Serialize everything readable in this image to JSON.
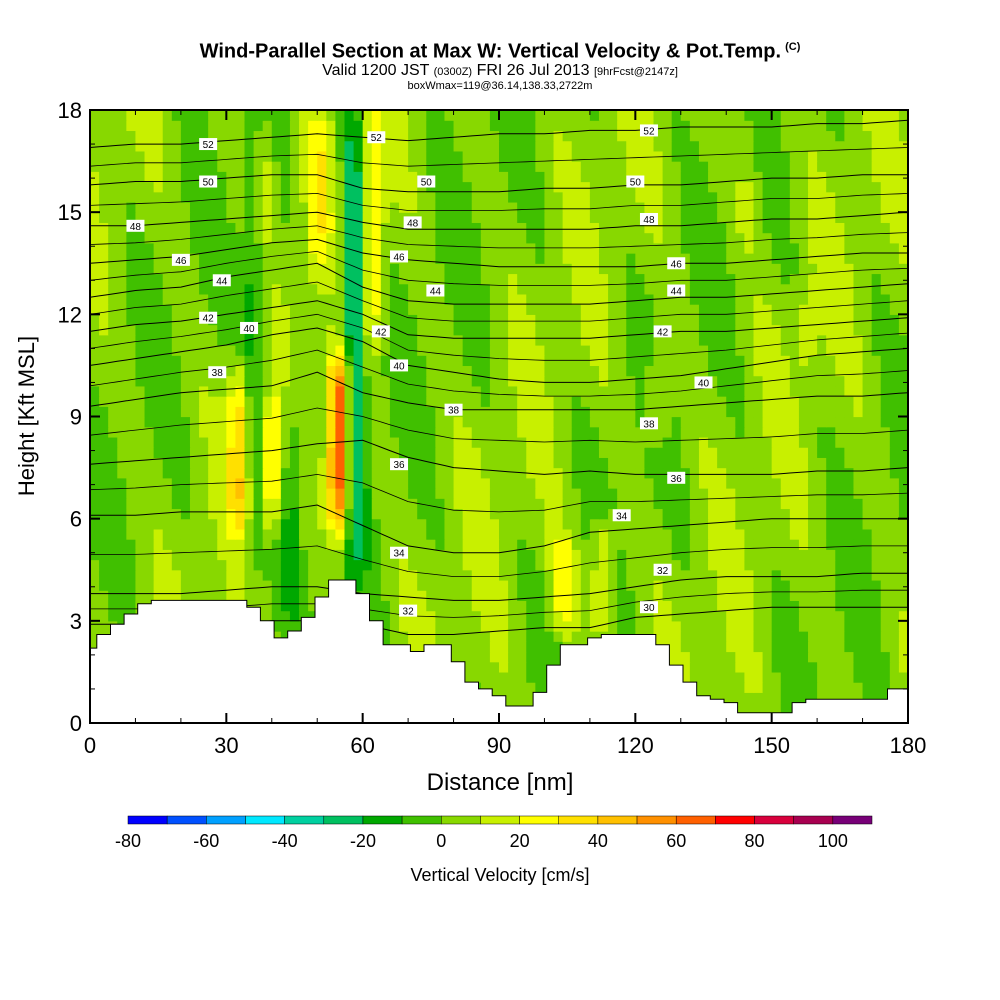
{
  "title": {
    "main": "Wind-Parallel Section at Max W: Vertical Velocity & Pot.Temp.",
    "copyright": "(C)",
    "valid_prefix": "Valid 1200 JST",
    "valid_utc": "(0300Z)",
    "valid_date": "FRI 26 Jul 2013",
    "forecast": "[9hrFcst@2147z]",
    "box_info": "boxWmax=119@36.14,138.33,2722m"
  },
  "chart_data": {
    "type": "heatmap",
    "xlabel": "Distance [nm]",
    "ylabel": "Height [Kft MSL]",
    "xlim": [
      0,
      180
    ],
    "ylim": [
      0,
      18
    ],
    "xticks": [
      "0",
      "30",
      "60",
      "90",
      "120",
      "150",
      "180"
    ],
    "yticks": [
      "0",
      "3",
      "6",
      "9",
      "12",
      "15",
      "18"
    ],
    "colorbar": {
      "label": "Vertical Velocity [cm/s]",
      "ticks": [
        "-80",
        "-60",
        "-40",
        "-20",
        "0",
        "20",
        "40",
        "60",
        "80",
        "100"
      ],
      "levels": [
        -80,
        -70,
        -60,
        -50,
        -40,
        -30,
        -20,
        -10,
        0,
        10,
        20,
        30,
        40,
        50,
        60,
        70,
        80,
        90,
        100,
        110
      ],
      "colors": [
        "#0000ff",
        "#0050ff",
        "#00a0ff",
        "#00e8ff",
        "#00d0a0",
        "#00c060",
        "#00a800",
        "#40c000",
        "#88d800",
        "#c8f000",
        "#ffff00",
        "#ffe000",
        "#ffc000",
        "#ff9000",
        "#ff6000",
        "#ff0000",
        "#d8003c",
        "#a80050",
        "#780078"
      ]
    },
    "vertical_velocity_features": [
      {
        "x": 33,
        "y_range": [
          5.5,
          10.5
        ],
        "value": 35
      },
      {
        "x": 36,
        "y_range": [
          4,
          18
        ],
        "value": -20
      },
      {
        "x": 40,
        "y_range": [
          5.5,
          9.5
        ],
        "value": 30
      },
      {
        "x": 44,
        "y_range": [
          3.5,
          10
        ],
        "value": -20
      },
      {
        "x": 55,
        "y_range": [
          5.5,
          11
        ],
        "value": 80
      },
      {
        "x": 58,
        "y_range": [
          5,
          18
        ],
        "value": -45
      },
      {
        "x": 62,
        "y_range": [
          11,
          18
        ],
        "value": 30
      },
      {
        "x": 50,
        "y_range": [
          13,
          18
        ],
        "value": 20
      },
      {
        "x": 38,
        "y_range": [
          14,
          18
        ],
        "value": 20
      },
      {
        "x": 104,
        "y_range": [
          2.5,
          5.5
        ],
        "value": 25
      },
      {
        "x": 113,
        "y_range": [
          2.5,
          6
        ],
        "value": 25
      },
      {
        "x": 125,
        "y_range": [
          8,
          11
        ],
        "value": 15
      },
      {
        "x": 145,
        "y_range": [
          14,
          18
        ],
        "value": 10
      },
      {
        "x": 158,
        "y_range": [
          10,
          13
        ],
        "value": 10
      }
    ],
    "theta_contours": [
      {
        "label": "30",
        "heights": [
          2.9,
          2.9,
          2.9,
          2.9,
          3.0,
          3.0,
          2.9,
          2.6,
          2.6,
          2.7,
          2.8,
          2.8,
          3.1,
          3.2,
          3.3,
          3.4,
          3.4,
          3.4,
          3.4
        ]
      },
      {
        "label": "32",
        "heights": [
          3.8,
          3.8,
          3.8,
          3.9,
          4.0,
          4.0,
          3.8,
          3.7,
          3.6,
          3.6,
          3.7,
          3.8,
          4.0,
          4.2,
          4.3,
          4.3,
          4.3,
          4.4,
          4.4
        ]
      },
      {
        "label": "34",
        "heights": [
          6.1,
          6.1,
          6.2,
          6.2,
          6.2,
          6.4,
          5.8,
          5.2,
          5.0,
          5.0,
          5.2,
          5.6,
          5.7,
          5.8,
          5.9,
          6.0,
          6.0,
          6.0,
          6.0
        ]
      },
      {
        "label": "36",
        "heights": [
          7.6,
          7.7,
          7.8,
          7.9,
          8.0,
          8.2,
          8.3,
          7.8,
          7.5,
          7.4,
          7.3,
          7.4,
          7.3,
          7.3,
          7.3,
          7.3,
          7.4,
          7.4,
          7.5
        ]
      },
      {
        "label": "38",
        "heights": [
          9.3,
          9.5,
          9.7,
          9.8,
          9.9,
          10.3,
          9.7,
          9.4,
          9.2,
          9.2,
          9.2,
          9.2,
          9.2,
          9.3,
          9.4,
          9.5,
          9.6,
          9.6,
          9.7
        ]
      },
      {
        "label": "40",
        "heights": [
          10.5,
          10.7,
          10.9,
          11.1,
          11.4,
          11.6,
          11.2,
          10.5,
          10.3,
          10.1,
          10.0,
          10.0,
          10.1,
          10.2,
          10.4,
          10.6,
          10.8,
          10.9,
          11.0
        ]
      },
      {
        "label": "42",
        "heights": [
          11.5,
          11.7,
          11.8,
          12.0,
          12.2,
          12.4,
          12.0,
          11.4,
          11.3,
          11.3,
          11.3,
          11.3,
          11.4,
          11.5,
          11.5,
          11.6,
          11.7,
          11.8,
          11.9
        ]
      },
      {
        "label": "44",
        "heights": [
          12.5,
          12.7,
          12.8,
          13.1,
          13.3,
          13.5,
          12.8,
          12.4,
          12.3,
          12.3,
          12.3,
          12.3,
          12.4,
          12.5,
          12.5,
          12.6,
          12.7,
          12.8,
          12.9
        ]
      },
      {
        "label": "46",
        "heights": [
          13.5,
          13.6,
          13.7,
          13.9,
          14.1,
          14.2,
          13.8,
          13.6,
          13.5,
          13.4,
          13.4,
          13.4,
          13.4,
          13.5,
          13.5,
          13.6,
          13.7,
          13.8,
          13.8
        ]
      },
      {
        "label": "48",
        "heights": [
          14.6,
          14.6,
          14.7,
          14.8,
          14.9,
          15.0,
          14.7,
          14.5,
          14.5,
          14.5,
          14.5,
          14.5,
          14.6,
          14.6,
          14.7,
          14.8,
          14.8,
          14.9,
          15.0
        ]
      },
      {
        "label": "50",
        "heights": [
          15.8,
          15.9,
          15.9,
          16.0,
          16.1,
          16.1,
          15.7,
          15.6,
          15.6,
          15.6,
          15.7,
          15.7,
          15.8,
          15.8,
          15.9,
          16.0,
          16.0,
          16.1,
          16.1
        ]
      },
      {
        "label": "52",
        "heights": [
          16.9,
          17.0,
          17.0,
          17.1,
          17.2,
          17.3,
          17.2,
          17.1,
          17.2,
          17.3,
          17.3,
          17.4,
          17.4,
          17.5,
          17.5,
          17.5,
          17.6,
          17.6,
          17.7
        ]
      }
    ],
    "contour_labels": [
      {
        "text": "52",
        "x": 26,
        "y": 17.0
      },
      {
        "text": "50",
        "x": 26,
        "y": 15.9
      },
      {
        "text": "48",
        "x": 10,
        "y": 14.6
      },
      {
        "text": "46",
        "x": 20,
        "y": 13.6
      },
      {
        "text": "44",
        "x": 29,
        "y": 13.0
      },
      {
        "text": "42",
        "x": 26,
        "y": 11.9
      },
      {
        "text": "40",
        "x": 35,
        "y": 11.6
      },
      {
        "text": "38",
        "x": 28,
        "y": 10.3
      },
      {
        "text": "52",
        "x": 63,
        "y": 17.2
      },
      {
        "text": "50",
        "x": 74,
        "y": 15.9
      },
      {
        "text": "48",
        "x": 71,
        "y": 14.7
      },
      {
        "text": "46",
        "x": 68,
        "y": 13.7
      },
      {
        "text": "44",
        "x": 76,
        "y": 12.7
      },
      {
        "text": "42",
        "x": 64,
        "y": 11.5
      },
      {
        "text": "40",
        "x": 68,
        "y": 10.5
      },
      {
        "text": "38",
        "x": 80,
        "y": 9.2
      },
      {
        "text": "36",
        "x": 68,
        "y": 7.6
      },
      {
        "text": "34",
        "x": 68,
        "y": 5.0
      },
      {
        "text": "32",
        "x": 70,
        "y": 3.3
      },
      {
        "text": "52",
        "x": 123,
        "y": 17.4
      },
      {
        "text": "50",
        "x": 120,
        "y": 15.9
      },
      {
        "text": "48",
        "x": 123,
        "y": 14.8
      },
      {
        "text": "46",
        "x": 129,
        "y": 13.5
      },
      {
        "text": "44",
        "x": 129,
        "y": 12.7
      },
      {
        "text": "42",
        "x": 126,
        "y": 11.5
      },
      {
        "text": "40",
        "x": 135,
        "y": 10.0
      },
      {
        "text": "38",
        "x": 123,
        "y": 8.8
      },
      {
        "text": "36",
        "x": 129,
        "y": 7.2
      },
      {
        "text": "34",
        "x": 117,
        "y": 6.1
      },
      {
        "text": "32",
        "x": 126,
        "y": 4.5
      },
      {
        "text": "30",
        "x": 123,
        "y": 3.4
      }
    ],
    "terrain": {
      "x": [
        0,
        3,
        6,
        9,
        12,
        15,
        18,
        21,
        24,
        27,
        30,
        33,
        36,
        39,
        42,
        45,
        48,
        51,
        54,
        57,
        60,
        63,
        66,
        69,
        72,
        75,
        78,
        81,
        84,
        87,
        90,
        93,
        96,
        99,
        102,
        105,
        108,
        111,
        114,
        117,
        120,
        123,
        126,
        129,
        132,
        135,
        138,
        141,
        144,
        147,
        150,
        153,
        156,
        159,
        162,
        165,
        168,
        171,
        174,
        177,
        180
      ],
      "height": [
        2.2,
        2.6,
        2.9,
        3.2,
        3.5,
        3.6,
        3.6,
        3.6,
        3.6,
        3.6,
        3.6,
        3.6,
        3.4,
        3.0,
        2.5,
        2.7,
        3.1,
        3.7,
        4.2,
        4.2,
        3.8,
        3.0,
        2.3,
        2.3,
        2.1,
        2.3,
        2.3,
        1.8,
        1.2,
        1.0,
        0.8,
        0.5,
        0.5,
        0.9,
        1.7,
        2.3,
        2.3,
        2.5,
        2.6,
        2.6,
        2.6,
        2.6,
        2.3,
        1.7,
        1.2,
        0.8,
        0.7,
        0.6,
        0.3,
        0.3,
        0.3,
        0.3,
        0.6,
        0.7,
        0.7,
        0.7,
        0.7,
        0.7,
        0.7,
        1.0,
        1.0
      ]
    }
  }
}
